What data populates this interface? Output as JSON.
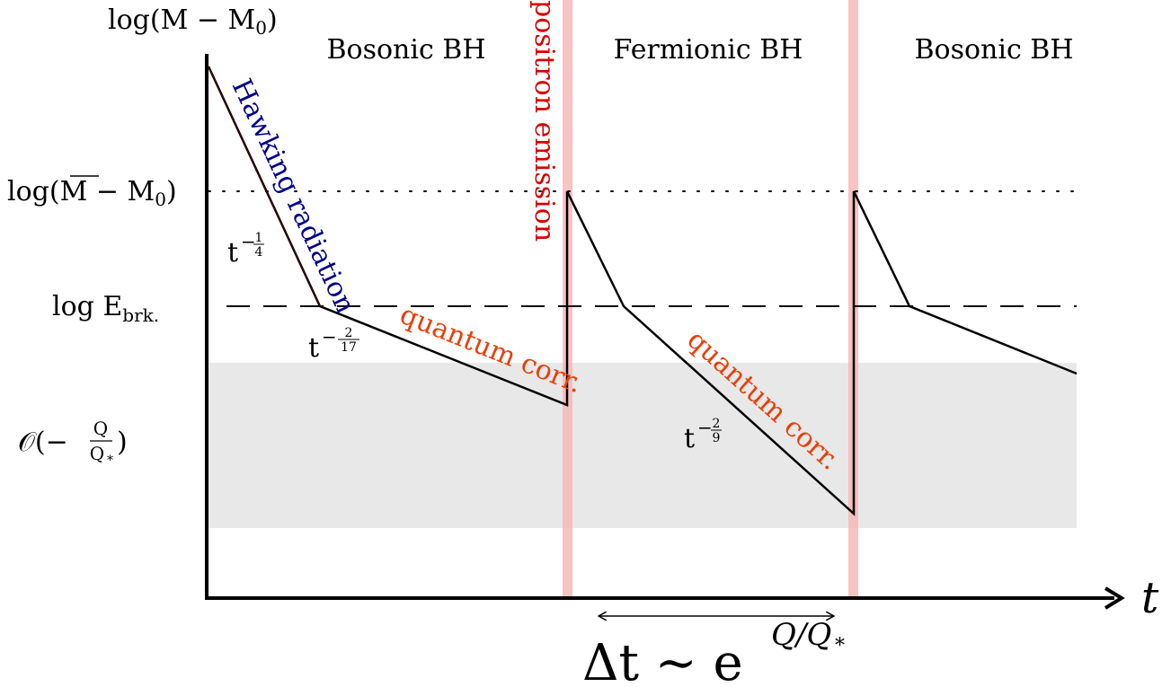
{
  "y_axis": {
    "label_main": "log(M − M",
    "label_sub": "0",
    "label_close": ")",
    "levels": {
      "mbar": {
        "text": "log(",
        "overlined": "M",
        "rest": " − M",
        "sub": "0",
        "close": ")"
      },
      "ebrk": {
        "text": "log E",
        "sub": "brk."
      },
      "oq": {
        "text": "𝒪(−",
        "num": "Q",
        "den": "Q",
        "den_sub": "*",
        "close": ")"
      }
    }
  },
  "x_axis": {
    "label": "t"
  },
  "phases": [
    "Bosonic BH",
    "Fermionic BH",
    "Bosonic BH"
  ],
  "annotations": {
    "hawking": "Hawking radiation",
    "positron": "positron emission",
    "quantum_corr_1": "quantum corr.",
    "quantum_corr_2": "quantum corr."
  },
  "slopes": {
    "s1": {
      "base": "t",
      "sign": "−",
      "num": "1",
      "den": "4"
    },
    "s2": {
      "base": "t",
      "sign": "−",
      "num": "2",
      "den": "17"
    },
    "s3": {
      "base": "t",
      "sign": "−",
      "num": "2",
      "den": "9"
    }
  },
  "delta_t": {
    "base": "Δt ∼ e",
    "exponent": "Q/Q",
    "exponent_sub": "*"
  },
  "colors": {
    "hawking": "#00008b",
    "positron": "#d50000",
    "quantum": "#e8400a",
    "emission_band": "#f8b4b4",
    "grey_band": "#e8e8e8",
    "curve": "#000000"
  }
}
